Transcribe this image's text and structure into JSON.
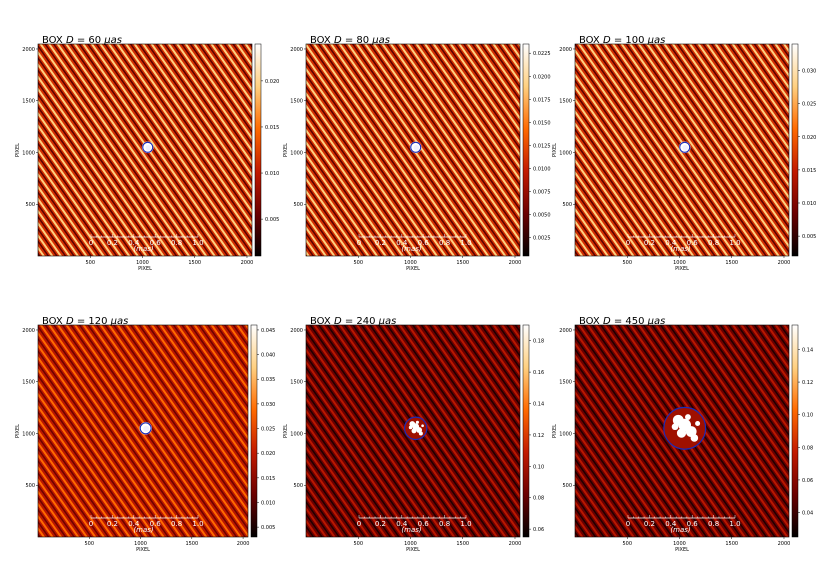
{
  "chart_data": [
    {
      "type": "heatmap",
      "title_prefix": "BOX ",
      "title_var": "D",
      "title_eq": " = 60 ",
      "title_unit": "μas",
      "xlabel": "PIXEL",
      "ylabel": "PIXEL",
      "xlim": [
        0,
        2048
      ],
      "ylim": [
        0,
        2048
      ],
      "xticks": [
        "500",
        "1000",
        "1500",
        "2000"
      ],
      "xtick_values": [
        500,
        1000,
        1500,
        2000
      ],
      "yticks": [
        "500",
        "1000",
        "1500",
        "2000"
      ],
      "ytick_values": [
        500,
        1000,
        1500,
        2000
      ],
      "scalebar_ticks": [
        "0",
        "0.2",
        "0.4",
        "0.6",
        "0.8",
        "1.0"
      ],
      "scalebar_unit": "(mas)",
      "colorbar_ticks": [
        "0.005",
        "0.010",
        "0.015",
        "0.020"
      ],
      "colorbar_values": [
        0.005,
        0.01,
        0.015,
        0.02
      ],
      "colorbar_range": [
        0.001,
        0.024
      ],
      "box_diameter_uas": 60,
      "source_center": [
        1050,
        1050
      ],
      "background_level": 0.45,
      "stripe_contrast": 0.35
    },
    {
      "type": "heatmap",
      "title_prefix": "BOX ",
      "title_var": "D",
      "title_eq": " = 80 ",
      "title_unit": "μas",
      "xlabel": "PIXEL",
      "ylabel": "PIXEL",
      "xlim": [
        0,
        2048
      ],
      "ylim": [
        0,
        2048
      ],
      "xticks": [
        "500",
        "1000",
        "1500",
        "2000"
      ],
      "xtick_values": [
        500,
        1000,
        1500,
        2000
      ],
      "yticks": [
        "500",
        "1000",
        "1500",
        "2000"
      ],
      "ytick_values": [
        500,
        1000,
        1500,
        2000
      ],
      "scalebar_ticks": [
        "0",
        "0.2",
        "0.4",
        "0.6",
        "0.8",
        "1.0"
      ],
      "scalebar_unit": "(mas)",
      "colorbar_ticks": [
        "0.0025",
        "0.0050",
        "0.0075",
        "0.0100",
        "0.0125",
        "0.0150",
        "0.0175",
        "0.0200",
        "0.0225"
      ],
      "colorbar_values": [
        0.0025,
        0.005,
        0.0075,
        0.01,
        0.0125,
        0.015,
        0.0175,
        0.02,
        0.0225
      ],
      "colorbar_range": [
        0.0005,
        0.0235
      ],
      "box_diameter_uas": 80,
      "source_center": [
        1050,
        1050
      ],
      "background_level": 0.45,
      "stripe_contrast": 0.35
    },
    {
      "type": "heatmap",
      "title_prefix": "BOX ",
      "title_var": "D",
      "title_eq": " = 100 ",
      "title_unit": "μas",
      "xlabel": "PIXEL",
      "ylabel": "PIXEL",
      "xlim": [
        0,
        2048
      ],
      "ylim": [
        0,
        2048
      ],
      "xticks": [
        "500",
        "1000",
        "1500",
        "2000"
      ],
      "xtick_values": [
        500,
        1000,
        1500,
        2000
      ],
      "yticks": [
        "500",
        "1000",
        "1500",
        "2000"
      ],
      "ytick_values": [
        500,
        1000,
        1500,
        2000
      ],
      "scalebar_ticks": [
        "0",
        "0.2",
        "0.4",
        "0.6",
        "0.8",
        "1.0"
      ],
      "scalebar_unit": "(mas)",
      "colorbar_ticks": [
        "0.005",
        "0.010",
        "0.015",
        "0.020",
        "0.025",
        "0.030"
      ],
      "colorbar_values": [
        0.005,
        0.01,
        0.015,
        0.02,
        0.025,
        0.03
      ],
      "colorbar_range": [
        0.002,
        0.034
      ],
      "box_diameter_uas": 100,
      "source_center": [
        1050,
        1050
      ],
      "background_level": 0.45,
      "stripe_contrast": 0.35
    },
    {
      "type": "heatmap",
      "title_prefix": "BOX ",
      "title_var": "D",
      "title_eq": " = 120 ",
      "title_unit": "μas",
      "xlabel": "PIXEL",
      "ylabel": "PIXEL",
      "xlim": [
        0,
        2048
      ],
      "ylim": [
        0,
        2048
      ],
      "xticks": [
        "500",
        "1000",
        "1500",
        "2000"
      ],
      "xtick_values": [
        500,
        1000,
        1500,
        2000
      ],
      "yticks": [
        "500",
        "1000",
        "1500",
        "2000"
      ],
      "ytick_values": [
        500,
        1000,
        1500,
        2000
      ],
      "scalebar_ticks": [
        "0",
        "0.2",
        "0.4",
        "0.6",
        "0.8",
        "1.0"
      ],
      "scalebar_unit": "(mas)",
      "colorbar_ticks": [
        "0.005",
        "0.010",
        "0.015",
        "0.020",
        "0.025",
        "0.030",
        "0.035",
        "0.040",
        "0.045"
      ],
      "colorbar_values": [
        0.005,
        0.01,
        0.015,
        0.02,
        0.025,
        0.03,
        0.035,
        0.04,
        0.045
      ],
      "colorbar_range": [
        0.003,
        0.046
      ],
      "box_diameter_uas": 120,
      "source_center": [
        1050,
        1050
      ],
      "background_level": 0.38,
      "stripe_contrast": 0.22
    },
    {
      "type": "heatmap",
      "title_prefix": "BOX ",
      "title_var": "D",
      "title_eq": " = 240 ",
      "title_unit": "μas",
      "xlabel": "PIXEL",
      "ylabel": "PIXEL",
      "xlim": [
        0,
        2048
      ],
      "ylim": [
        0,
        2048
      ],
      "xticks": [
        "500",
        "1000",
        "1500",
        "2000"
      ],
      "xtick_values": [
        500,
        1000,
        1500,
        2000
      ],
      "yticks": [
        "500",
        "1000",
        "1500",
        "2000"
      ],
      "ytick_values": [
        500,
        1000,
        1500,
        2000
      ],
      "scalebar_ticks": [
        "0",
        "0.2",
        "0.4",
        "0.6",
        "0.8",
        "1.0"
      ],
      "scalebar_unit": "(mas)",
      "colorbar_ticks": [
        "0.06",
        "0.08",
        "0.10",
        "0.12",
        "0.14",
        "0.16",
        "0.18"
      ],
      "colorbar_values": [
        0.06,
        0.08,
        0.1,
        0.12,
        0.14,
        0.16,
        0.18
      ],
      "colorbar_range": [
        0.055,
        0.19
      ],
      "box_diameter_uas": 240,
      "source_center": [
        1050,
        1050
      ],
      "background_level": 0.2,
      "stripe_contrast": 0.18
    },
    {
      "type": "heatmap",
      "title_prefix": "BOX ",
      "title_var": "D",
      "title_eq": " = 450 ",
      "title_unit": "μas",
      "xlabel": "PIXEL",
      "ylabel": "PIXEL",
      "xlim": [
        0,
        2048
      ],
      "ylim": [
        0,
        2048
      ],
      "xticks": [
        "500",
        "1000",
        "1500",
        "2000"
      ],
      "xtick_values": [
        500,
        1000,
        1500,
        2000
      ],
      "yticks": [
        "500",
        "1000",
        "1500",
        "2000"
      ],
      "ytick_values": [
        500,
        1000,
        1500,
        2000
      ],
      "scalebar_ticks": [
        "0",
        "0.2",
        "0.4",
        "0.6",
        "0.8",
        "1.0"
      ],
      "scalebar_unit": "(mas)",
      "colorbar_ticks": [
        "0.04",
        "0.06",
        "0.08",
        "0.10",
        "0.12",
        "0.14"
      ],
      "colorbar_values": [
        0.04,
        0.06,
        0.08,
        0.1,
        0.12,
        0.14
      ],
      "colorbar_range": [
        0.025,
        0.155
      ],
      "box_diameter_uas": 450,
      "source_center": [
        1050,
        1050
      ],
      "background_level": 0.2,
      "stripe_contrast": 0.18
    }
  ],
  "colors": {
    "ring": "#1a2bb8",
    "scale_bar": "#ffffff",
    "colormap": [
      "#000000",
      "#6b0000",
      "#c21a00",
      "#ff6a00",
      "#ffd080",
      "#ffffff"
    ]
  }
}
